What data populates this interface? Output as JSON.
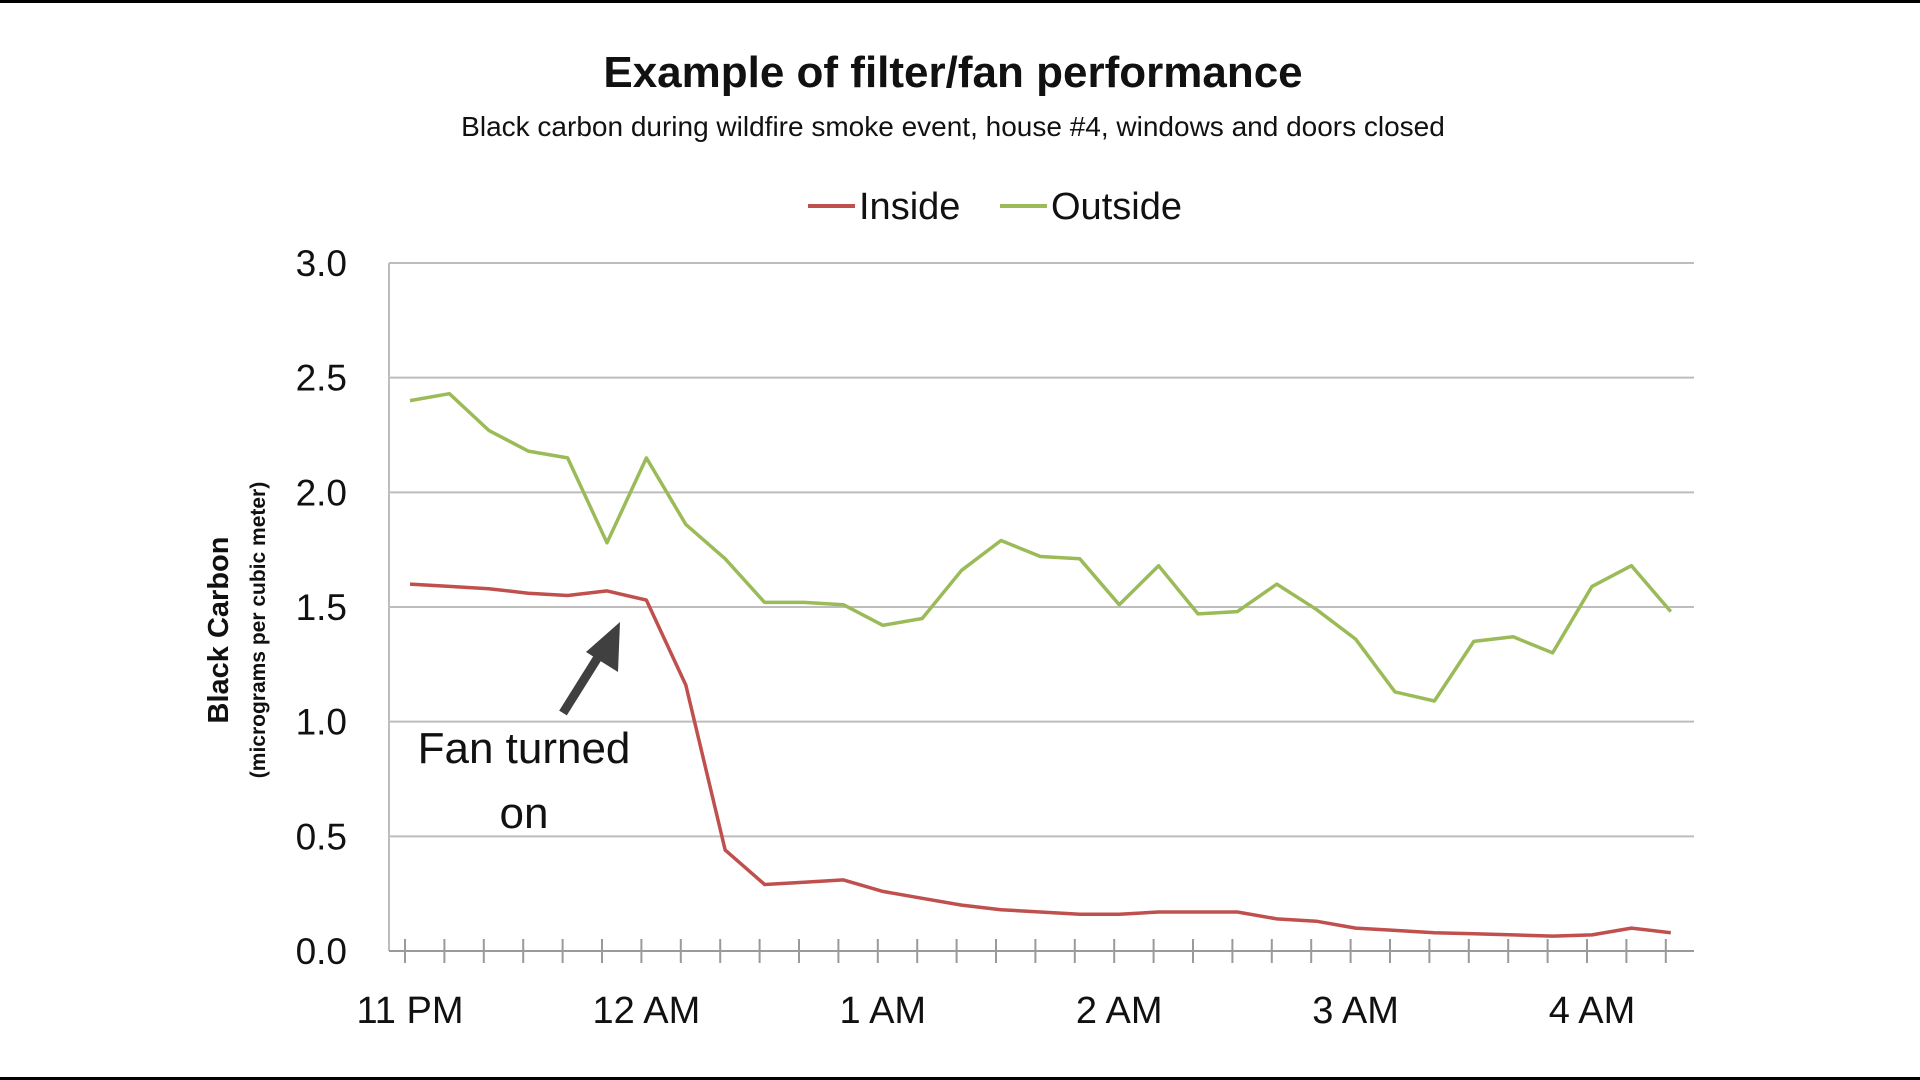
{
  "chart_data": {
    "type": "line",
    "title": "Example of filter/fan performance",
    "subtitle": "Black carbon during wildfire smoke event, house #4, windows and doors closed",
    "ylabel": "Black Carbon",
    "ylabel_sub": "(micrograms per cubic meter)",
    "ylim": [
      0,
      3.0
    ],
    "yticks": [
      "0.0",
      "0.5",
      "1.0",
      "1.5",
      "2.0",
      "2.5",
      "3.0"
    ],
    "xtick_labels": [
      "11 PM",
      "12 AM",
      "1 AM",
      "2 AM",
      "3 AM",
      "4 AM"
    ],
    "grid": true,
    "legend_position": "top",
    "x": [
      "11:00 PM",
      "11:10 PM",
      "11:20 PM",
      "11:30 PM",
      "11:40 PM",
      "11:50 PM",
      "12:00 AM",
      "12:10 AM",
      "12:20 AM",
      "12:30 AM",
      "12:40 AM",
      "12:50 AM",
      "1:00 AM",
      "1:10 AM",
      "1:20 AM",
      "1:30 AM",
      "1:40 AM",
      "1:50 AM",
      "2:00 AM",
      "2:10 AM",
      "2:20 AM",
      "2:30 AM",
      "2:40 AM",
      "2:50 AM",
      "3:00 AM",
      "3:10 AM",
      "3:20 AM",
      "3:30 AM",
      "3:40 AM",
      "3:50 AM",
      "4:00 AM",
      "4:10 AM",
      "4:20 AM"
    ],
    "series": [
      {
        "name": "Inside",
        "color": "#c0504d",
        "values": [
          1.6,
          1.59,
          1.58,
          1.56,
          1.55,
          1.57,
          1.53,
          1.16,
          0.44,
          0.29,
          0.3,
          0.31,
          0.26,
          0.23,
          0.2,
          0.18,
          0.17,
          0.16,
          0.16,
          0.17,
          0.17,
          0.17,
          0.14,
          0.13,
          0.1,
          0.09,
          0.08,
          0.075,
          0.07,
          0.065,
          0.07,
          0.1,
          0.08
        ]
      },
      {
        "name": "Outside",
        "color": "#9bbb59",
        "values": [
          2.4,
          2.43,
          2.27,
          2.18,
          2.15,
          1.78,
          2.15,
          1.86,
          1.71,
          1.52,
          1.52,
          1.51,
          1.42,
          1.45,
          1.66,
          1.79,
          1.72,
          1.71,
          1.51,
          1.68,
          1.47,
          1.48,
          1.6,
          1.49,
          1.36,
          1.13,
          1.09,
          1.35,
          1.37,
          1.3,
          1.59,
          1.68,
          1.48
        ]
      }
    ],
    "annotation": {
      "line1": "Fan turned",
      "line2": "on",
      "points_to": "12:00 AM",
      "arrow_color": "#404040"
    }
  }
}
